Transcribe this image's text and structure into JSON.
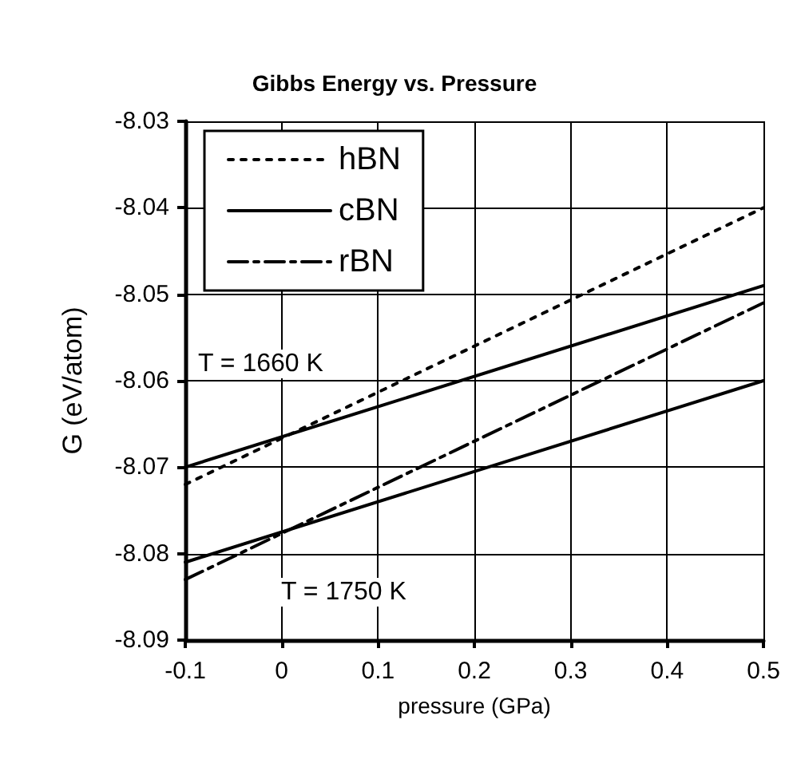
{
  "chart_data": {
    "type": "line",
    "title": "Gibbs Energy vs. Pressure",
    "xlabel": "pressure (GPa)",
    "ylabel": "G (eV/atom)",
    "x": [
      -0.1,
      0.5
    ],
    "series": [
      {
        "name": "hBN",
        "color": "#000000",
        "line_style": "dotted",
        "values": [
          -8.072,
          -8.04
        ]
      },
      {
        "name": "cBN",
        "color": "#000000",
        "line_style": "solid",
        "values": [
          -8.07,
          -8.049
        ]
      },
      {
        "name": "rBN",
        "color": "#000000",
        "line_style": "dashed",
        "values": [
          -8.083,
          -8.051
        ]
      },
      {
        "color": "#000000",
        "line_style": "solid",
        "values": [
          -8.081,
          -8.06
        ]
      }
    ],
    "annotations": [
      "T = 1660 K",
      "T = 1750 K"
    ],
    "xlim": [
      -0.1,
      0.5
    ],
    "xticks": [
      -0.1,
      0,
      0.1,
      0.2,
      0.3,
      0.4,
      0.5
    ],
    "ylim": [
      -8.09,
      -8.03
    ],
    "yticks": [
      -8.09,
      -8.08,
      -8.07,
      -8.06,
      -8.05,
      -8.04,
      -8.03
    ],
    "grid": true,
    "legend": "top left",
    "marker": "none"
  }
}
